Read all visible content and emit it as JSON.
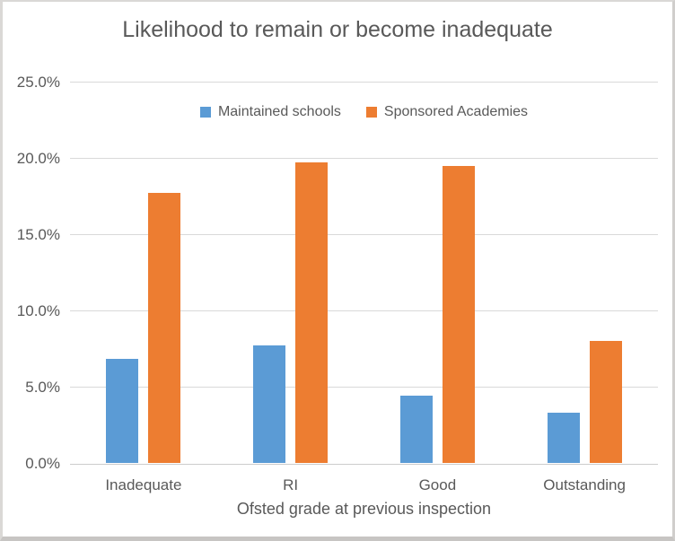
{
  "chart_data": {
    "type": "bar",
    "title": "Likelihood to remain or become inadequate",
    "xlabel": "Ofsted grade at previous inspection",
    "ylabel": "",
    "categories": [
      "Inadequate",
      "RI",
      "Good",
      "Outstanding"
    ],
    "series": [
      {
        "name": "Maintained schools",
        "color": "#5b9bd5",
        "values": [
          6.8,
          7.7,
          4.4,
          3.3
        ]
      },
      {
        "name": "Sponsored Academies",
        "color": "#ed7d31",
        "values": [
          17.7,
          19.7,
          19.5,
          8.0
        ]
      }
    ],
    "ylim": [
      0,
      25
    ],
    "yticks": [
      "0.0%",
      "5.0%",
      "10.0%",
      "15.0%",
      "20.0%",
      "25.0%"
    ],
    "ytick_values": [
      0,
      5,
      10,
      15,
      20,
      25
    ],
    "grid": true,
    "legend_position": "top-inside-horizontal",
    "colors": {
      "text": "#595959",
      "gridline": "#d9d9d9",
      "axis_line": "#cccccc",
      "maintained_schools": "#5b9bd5",
      "sponsored_academies": "#ed7d31"
    }
  }
}
